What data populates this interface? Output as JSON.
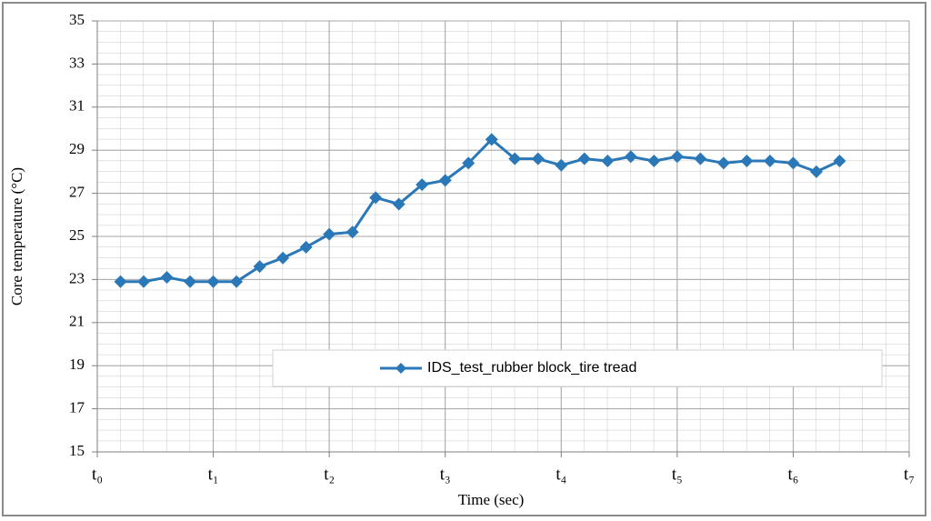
{
  "chart_data": {
    "type": "line",
    "x_label": "Time (sec)",
    "y_label": "Core temperature (°C)",
    "x": [
      0.2,
      0.4,
      0.6,
      0.8,
      1.0,
      1.2,
      1.4,
      1.6,
      1.8,
      2.0,
      2.2,
      2.4,
      2.6,
      2.8,
      3.0,
      3.2,
      3.4,
      3.6,
      3.8,
      4.0,
      4.2,
      4.4,
      4.6,
      4.8,
      5.0,
      5.2,
      5.4,
      5.6,
      5.8,
      6.0,
      6.2,
      6.4
    ],
    "series": [
      {
        "name": "IDS_test_rubber block_tire tread",
        "color": "#2b78b8",
        "values": [
          22.9,
          22.9,
          23.1,
          22.9,
          22.9,
          22.9,
          23.6,
          24.0,
          24.5,
          25.1,
          25.2,
          26.8,
          26.5,
          27.4,
          27.6,
          28.4,
          29.5,
          28.6,
          28.6,
          28.3,
          28.6,
          28.5,
          28.7,
          28.5,
          28.7,
          28.6,
          28.4,
          28.5,
          28.5,
          28.4,
          28.0,
          28.5
        ]
      }
    ],
    "xlim": [
      0,
      7
    ],
    "xticks": [
      {
        "value": 0,
        "label": "t₀"
      },
      {
        "value": 1,
        "label": "t₁"
      },
      {
        "value": 2,
        "label": "t₂"
      },
      {
        "value": 3,
        "label": "t₃"
      },
      {
        "value": 4,
        "label": "t₄"
      },
      {
        "value": 5,
        "label": "t₅"
      },
      {
        "value": 6,
        "label": "t₆"
      },
      {
        "value": 7,
        "label": "t₇"
      }
    ],
    "ylim": [
      15,
      35
    ],
    "yticks": [
      15,
      17,
      19,
      21,
      23,
      25,
      27,
      29,
      31,
      33,
      35
    ],
    "grid": true,
    "legend": "center"
  }
}
